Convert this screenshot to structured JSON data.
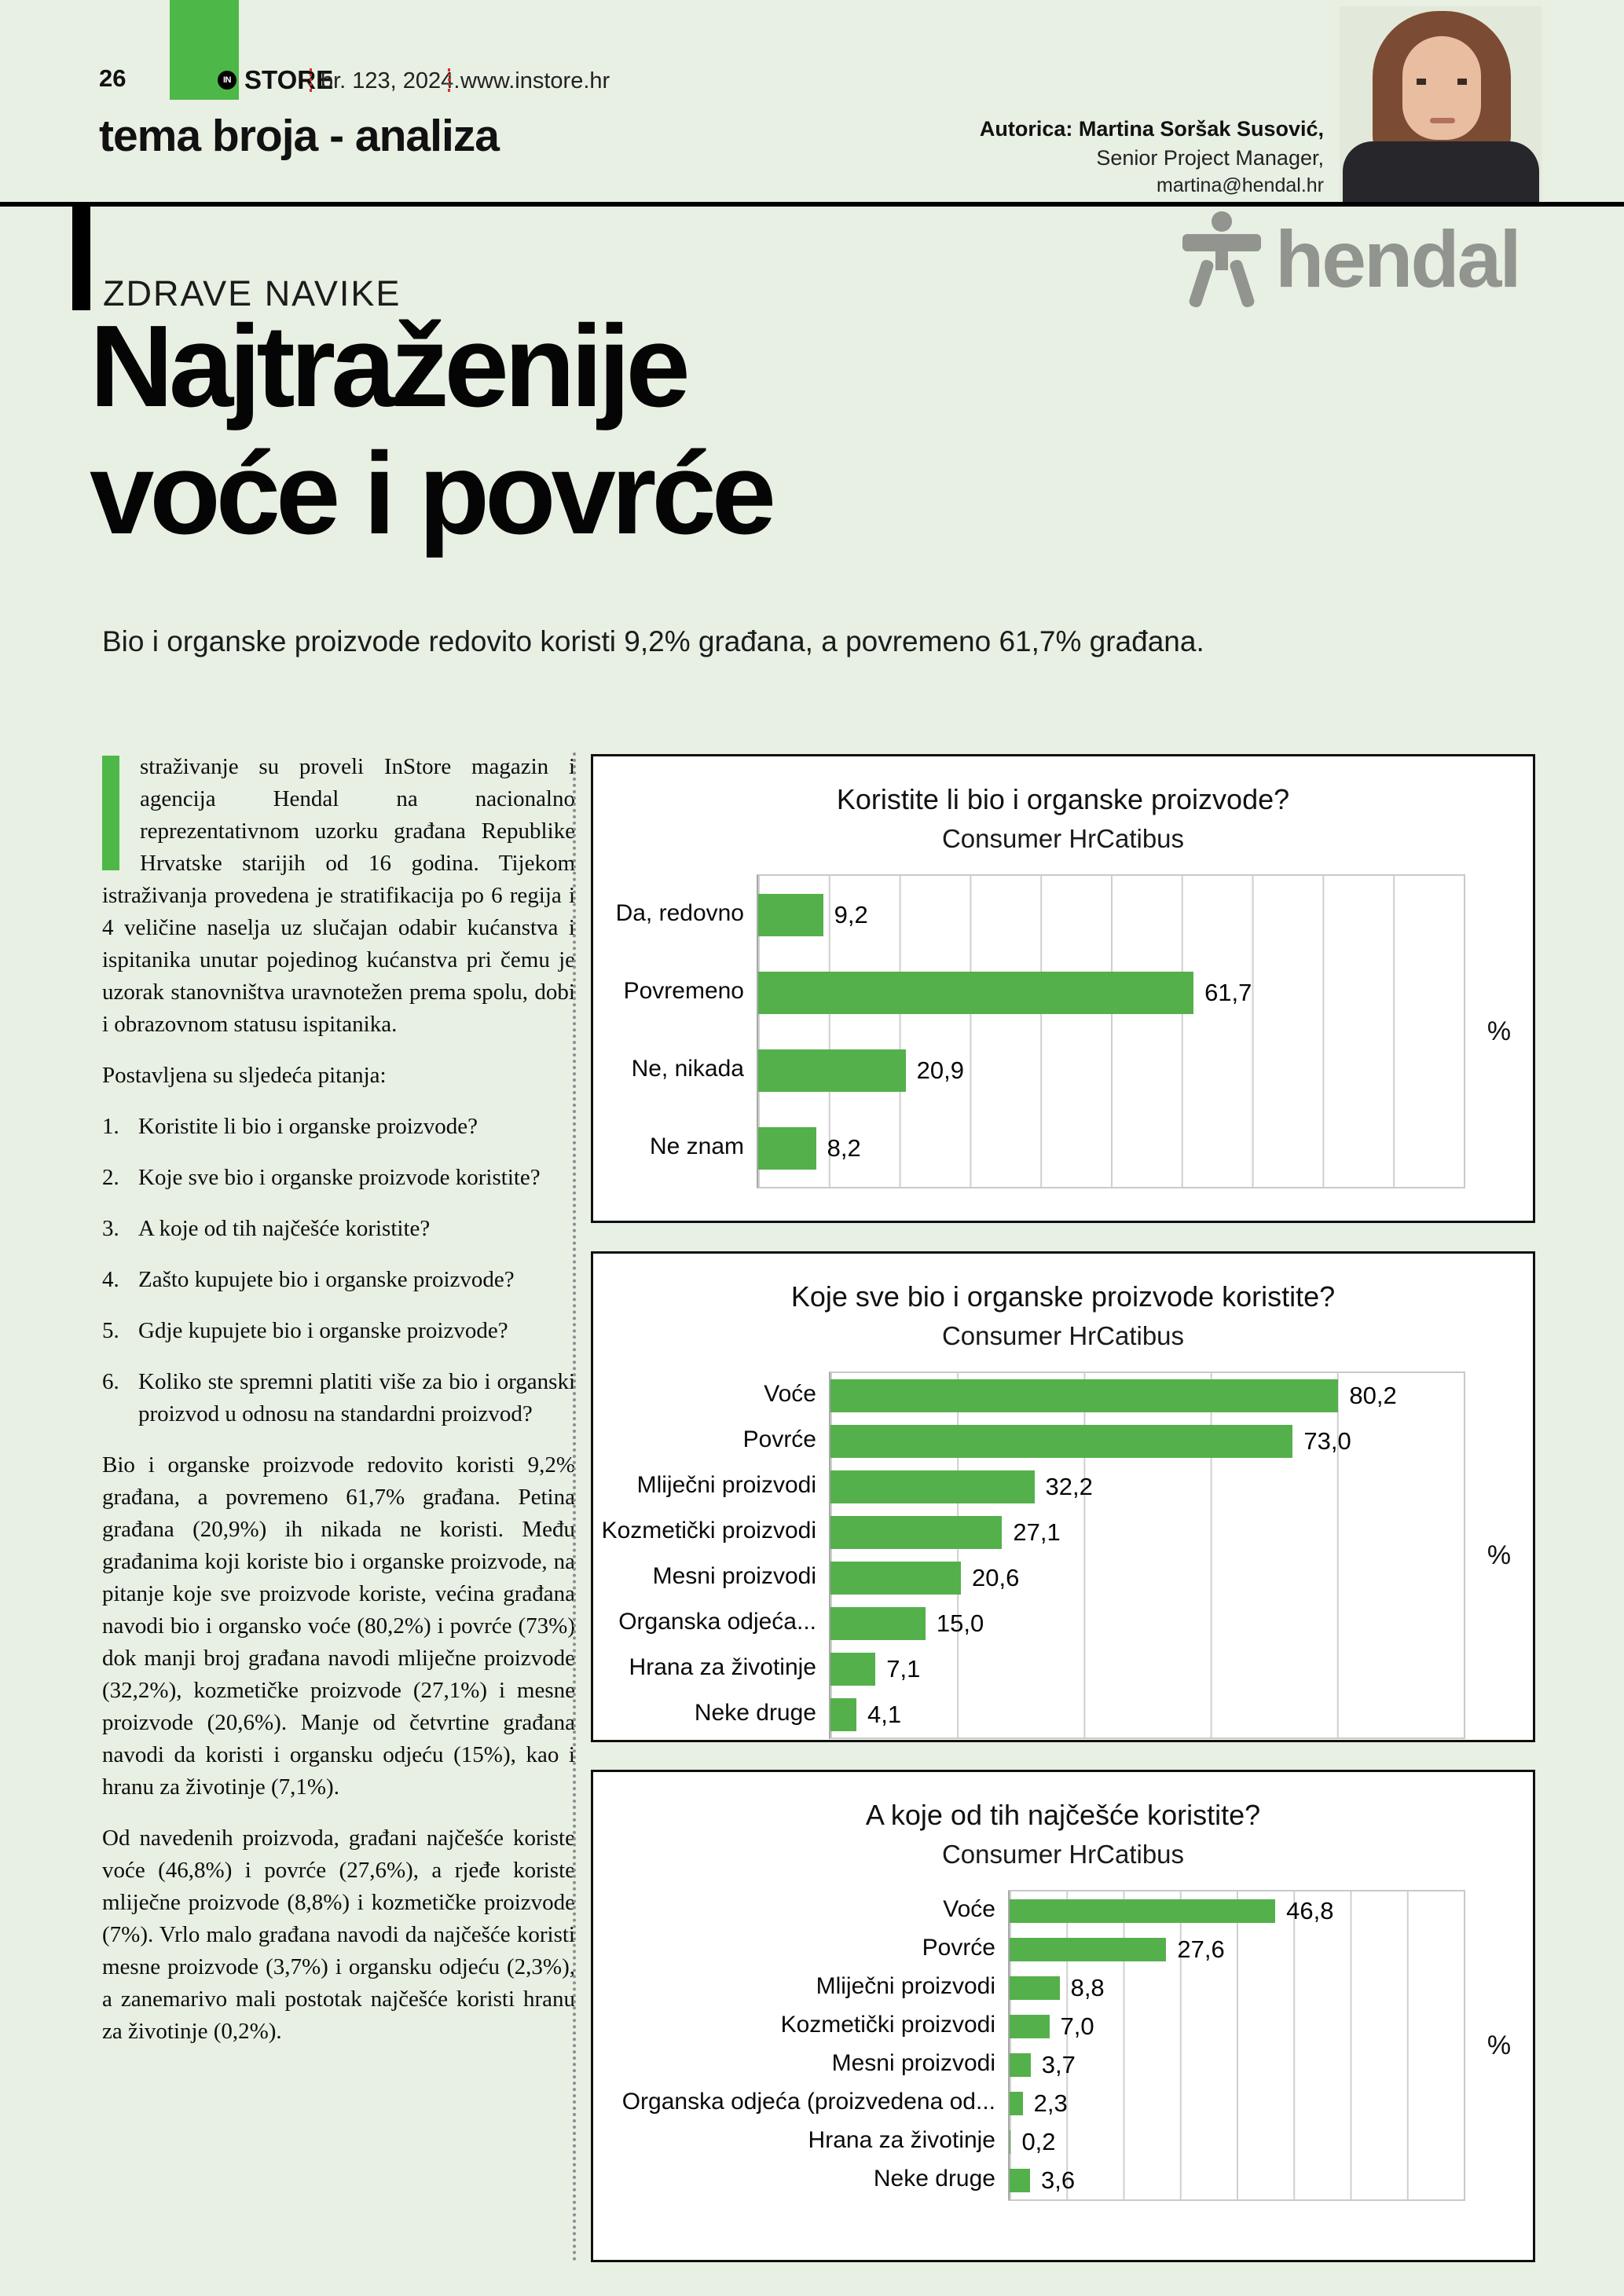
{
  "colors": {
    "page_bg": "#e8efe3",
    "accent_green": "#4db848",
    "bar_green": "#54b04a",
    "logo_red": "#d93025",
    "brand_gray": "#92948f"
  },
  "header": {
    "page_number": "26",
    "logo_in": "IN",
    "logo_store": "STORE",
    "issue": "br. 123, 2024.",
    "site": "www.instore.hr",
    "section_title": "tema broja - analiza",
    "author_name": "Autorica: Martina Soršak Susović,",
    "author_role": "Senior Project Manager,",
    "author_email": "martina@hendal.hr"
  },
  "kicker": "ZDRAVE NAVIKE",
  "brand_name": "hendal",
  "headline": "Najtraženije\nvoće i povrće",
  "lede": "Bio i organske proizvode redovito koristi 9,2% građana, a povremeno 61,7% građana.",
  "article": {
    "para1": "straživanje su proveli InStore magazin i agencija Hendal na nacionalno reprezentativnom uzorku građana Republike Hrvatske starijih od 16 godina. Tijekom istraživanja provedena je stratifikacija po 6 regija i 4 veličine naselja uz slučajan odabir kućanstva i ispitanika unutar pojedinog kućanstva pri čemu je uzorak stanovništva uravnotežen prema spolu, dobi i obrazovnom statusu ispitanika.",
    "questions_intro": "Postavljena su sljedeća pitanja:",
    "questions": [
      "Koristite li bio i organske proizvode?",
      "Koje sve bio i organske proizvode koristite?",
      "A koje od tih najčešće koristite?",
      "Zašto kupujete bio i organske proizvode?",
      "Gdje kupujete bio i organske proizvode?",
      "Koliko ste spremni platiti više za bio i organski proizvod u odnosu na standardni proizvod?"
    ],
    "para2": "Bio i organske proizvode redovito koristi 9,2% građana, a povremeno 61,7% građana. Petina građana (20,9%) ih nikada ne koristi. Među građanima koji koriste bio i organske proizvode, na pitanje koje sve proizvode koriste, većina građana navodi bio i organsko voće (80,2%) i povrće (73%) dok manji broj građana navodi mliječne proizvode (32,2%), kozmetičke proizvode (27,1%) i mesne proizvode (20,6%). Manje od četvrtine građana navodi da koristi i organsku odjeću (15%), kao i hranu za životinje (7,1%).",
    "para3": "Od navedenih proizvoda, građani najčešće koriste voće (46,8%) i povrće (27,6%), a rjeđe koriste mliječne proizvode (8,8%) i kozmetičke proizvode (7%). Vrlo malo građana navodi da najčešće koristi mesne proizvode (3,7%) i organsku odjeću (2,3%), a zanemarivo mali postotak najčešće koristi hranu za životinje (0,2%)."
  },
  "chart_data": [
    {
      "type": "bar",
      "orientation": "horizontal",
      "title": "Koristite li bio i organske proizvode?",
      "subtitle": "Consumer HrCatibus",
      "categories": [
        "Da, redovno",
        "Povremeno",
        "Ne, nikada",
        "Ne znam"
      ],
      "values": [
        9.2,
        61.7,
        20.9,
        8.2
      ],
      "value_labels": [
        "9,2",
        "61,7",
        "20,9",
        "8,2"
      ],
      "xlabel": "%",
      "xlim": [
        0,
        100
      ],
      "grid_step": 10,
      "grid": "on",
      "legend": "none"
    },
    {
      "type": "bar",
      "orientation": "horizontal",
      "title": "Koje sve bio i organske proizvode koristite?",
      "subtitle": "Consumer HrCatibus",
      "categories": [
        "Voće",
        "Povrće",
        "Mliječni proizvodi",
        "Kozmetički proizvodi",
        "Mesni proizvodi",
        "Organska odjeća...",
        "Hrana za životinje",
        "Neke druge"
      ],
      "values": [
        80.2,
        73.0,
        32.2,
        27.1,
        20.6,
        15.0,
        7.1,
        4.1
      ],
      "value_labels": [
        "80,2",
        "73,0",
        "32,2",
        "27,1",
        "20,6",
        "15,0",
        "7,1",
        "4,1"
      ],
      "xlabel": "%",
      "xlim": [
        0,
        100
      ],
      "grid_step": 20,
      "grid": "on",
      "legend": "none"
    },
    {
      "type": "bar",
      "orientation": "horizontal",
      "title": "A koje od tih najčešće koristite?",
      "subtitle": "Consumer HrCatibus",
      "categories": [
        "Voće",
        "Povrće",
        "Mliječni proizvodi",
        "Kozmetički proizvodi",
        "Mesni proizvodi",
        "Organska odjeća (proizvedena od...",
        "Hrana za životinje",
        "Neke druge"
      ],
      "values": [
        46.8,
        27.6,
        8.8,
        7.0,
        3.7,
        2.3,
        0.2,
        3.6
      ],
      "value_labels": [
        "46,8",
        "27,6",
        "8,8",
        "7,0",
        "3,7",
        "2,3",
        "0,2",
        "3,6"
      ],
      "xlabel": "%",
      "xlim": [
        0,
        80
      ],
      "grid_step": 10,
      "grid": "on",
      "legend": "none"
    }
  ]
}
